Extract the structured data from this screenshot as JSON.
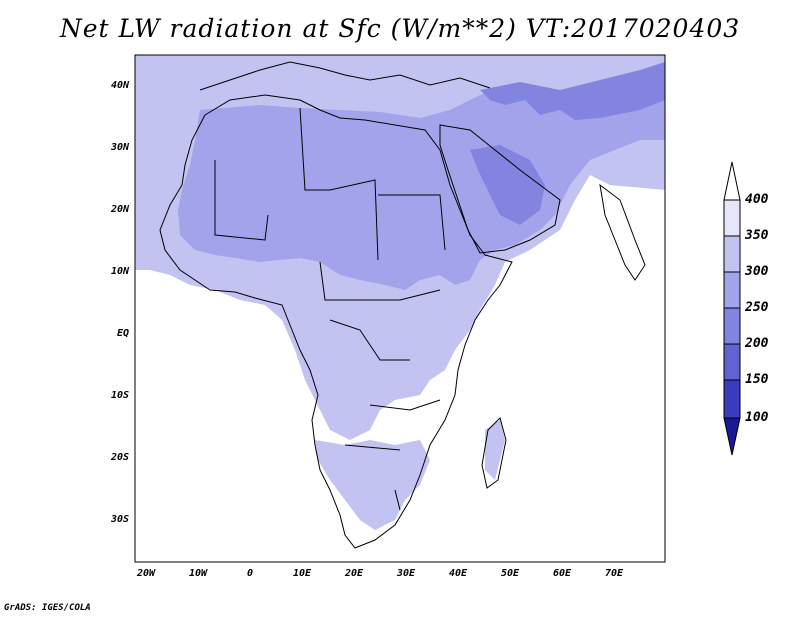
{
  "title": "Net LW radiation at Sfc (W/m**2) VT:2017020403",
  "credit": "GrADS: IGES/COLA",
  "map": {
    "lon_range": [
      -22,
      80
    ],
    "lat_range": [
      -37,
      45
    ],
    "lat_ticks": [
      {
        "value": 40,
        "label": "40N"
      },
      {
        "value": 30,
        "label": "30N"
      },
      {
        "value": 20,
        "label": "20N"
      },
      {
        "value": 10,
        "label": "10N"
      },
      {
        "value": 0,
        "label": "EQ"
      },
      {
        "value": -10,
        "label": "10S"
      },
      {
        "value": -20,
        "label": "20S"
      },
      {
        "value": -30,
        "label": "30S"
      }
    ],
    "lon_ticks": [
      {
        "value": -20,
        "label": "20W"
      },
      {
        "value": -10,
        "label": "10W"
      },
      {
        "value": 0,
        "label": "0"
      },
      {
        "value": 10,
        "label": "10E"
      },
      {
        "value": 20,
        "label": "20E"
      },
      {
        "value": 30,
        "label": "30E"
      },
      {
        "value": 40,
        "label": "40E"
      },
      {
        "value": 50,
        "label": "50E"
      },
      {
        "value": 60,
        "label": "60E"
      },
      {
        "value": 70,
        "label": "70E"
      }
    ]
  },
  "colorbar": {
    "levels": [
      "400",
      "350",
      "300",
      "250",
      "200",
      "150",
      "100"
    ],
    "colors": {
      "above_400": "#ffffff",
      "350_400": "#e6e6fa",
      "300_350": "#c3c3f2",
      "250_300": "#a3a3ec",
      "200_250": "#8383e0",
      "150_200": "#6262d0",
      "100_150": "#3c3cc0",
      "below_100": "#1a1a99"
    }
  }
}
